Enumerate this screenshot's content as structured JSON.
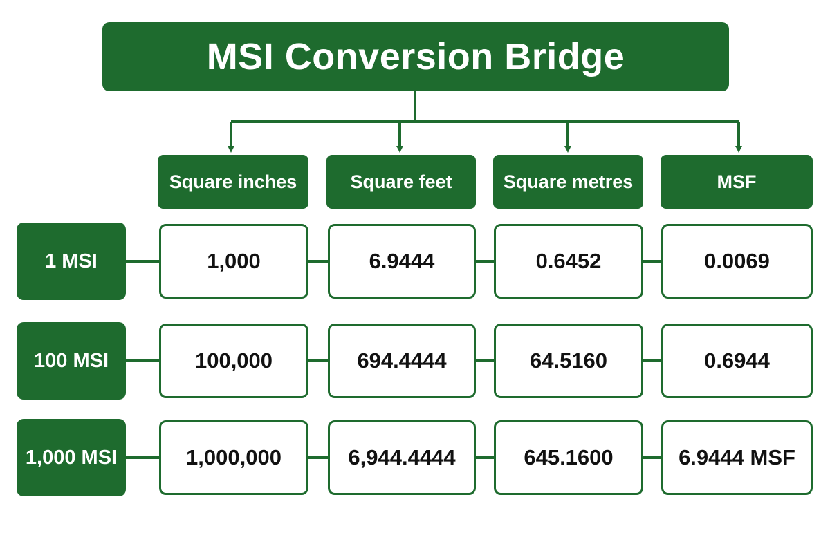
{
  "title": "MSI Conversion Bridge",
  "columns": [
    "Square inches",
    "Square feet",
    "Square metres",
    "MSF"
  ],
  "rows": [
    {
      "label": "1 MSI",
      "values": [
        "1,000",
        "6.9444",
        "0.6452",
        "0.0069"
      ]
    },
    {
      "label": "100 MSI",
      "values": [
        "100,000",
        "694.4444",
        "64.5160",
        "0.6944"
      ]
    },
    {
      "label": "1,000 MSI",
      "values": [
        "1,000,000",
        "6,944.4444",
        "645.1600",
        "6.9444 MSF"
      ]
    }
  ],
  "colors": {
    "primary": "#1e6b2e",
    "text": "#111111",
    "background": "#ffffff"
  }
}
